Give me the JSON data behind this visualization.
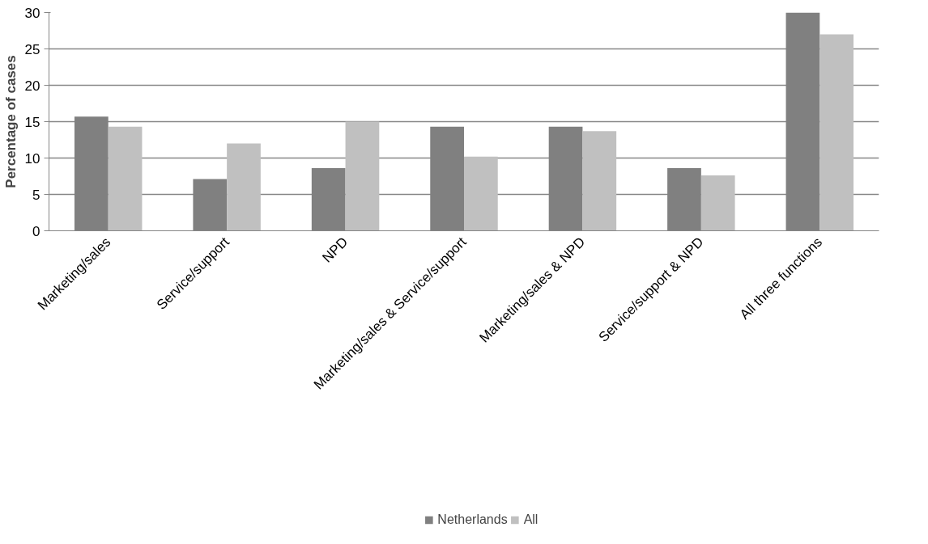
{
  "chart_data": {
    "type": "bar",
    "ylabel": "Percentage of cases",
    "categories": [
      "Marketing/sales",
      "Service/support",
      "NPD",
      "Marketing/sales & Service/support",
      "Marketing/sales & NPD",
      "Service/support & NPD",
      "All three functions"
    ],
    "series": [
      {
        "name": "Netherlands",
        "color": "#808080",
        "values": [
          15.7,
          7.1,
          8.6,
          14.3,
          14.3,
          8.6,
          30
        ]
      },
      {
        "name": "All",
        "color": "#c0c0c0",
        "values": [
          14.3,
          12.0,
          15.0,
          10.2,
          13.7,
          7.6,
          27.0
        ]
      }
    ],
    "ylim": [
      0,
      30
    ],
    "yticks": [
      0,
      5,
      10,
      15,
      20,
      25,
      30
    ],
    "grid": "y",
    "legend": "bottom"
  }
}
